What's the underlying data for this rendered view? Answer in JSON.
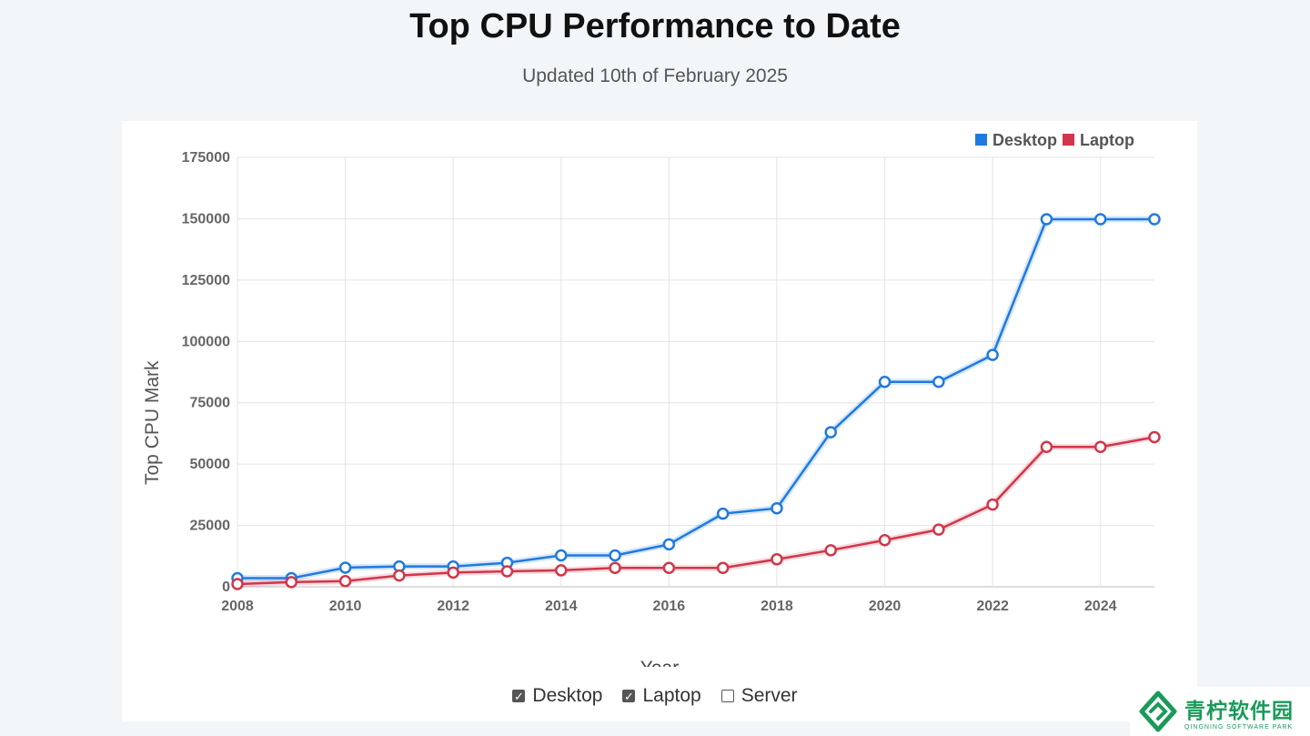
{
  "page": {
    "title": "Top CPU Performance to Date",
    "subtitle": "Updated 10th of February 2025"
  },
  "colors": {
    "desktop": "#1f7ae0",
    "laptop": "#d1364a",
    "brand": "#1a9a5a"
  },
  "chart_data": {
    "type": "line",
    "xlabel": "Year",
    "ylabel": "Top CPU Mark",
    "x": [
      2008,
      2009,
      2010,
      2011,
      2012,
      2013,
      2014,
      2015,
      2016,
      2017,
      2018,
      2019,
      2020,
      2021,
      2022,
      2023,
      2024,
      2025
    ],
    "xlim": [
      2008,
      2025
    ],
    "ylim": [
      0,
      175000
    ],
    "xticks": [
      "2008",
      "2010",
      "2012",
      "2014",
      "2016",
      "2018",
      "2020",
      "2022",
      "2024"
    ],
    "yticks": [
      "0",
      "25000",
      "50000",
      "75000",
      "100000",
      "125000",
      "150000",
      "175000"
    ],
    "grid": true,
    "legend_position": "top-right",
    "series": [
      {
        "name": "Desktop",
        "color": "#1f7ae0",
        "values": [
          3500,
          3500,
          7800,
          8300,
          8300,
          9800,
          12800,
          12800,
          17300,
          29800,
          32000,
          63000,
          83500,
          83500,
          94500,
          149800,
          149800,
          149800
        ]
      },
      {
        "name": "Laptop",
        "color": "#d1364a",
        "values": [
          1100,
          1900,
          2300,
          4600,
          5800,
          6300,
          6700,
          7700,
          7700,
          7700,
          11200,
          14900,
          19000,
          23300,
          33500,
          57000,
          57000,
          61000
        ]
      }
    ]
  },
  "filters": {
    "items": [
      {
        "label": "Desktop",
        "checked": "✓"
      },
      {
        "label": "Laptop",
        "checked": "✓"
      },
      {
        "label": "Server",
        "checked": ""
      }
    ]
  },
  "logo": {
    "name": "青柠软件园",
    "tagline": "QINGNING SOFTWARE PARK"
  }
}
